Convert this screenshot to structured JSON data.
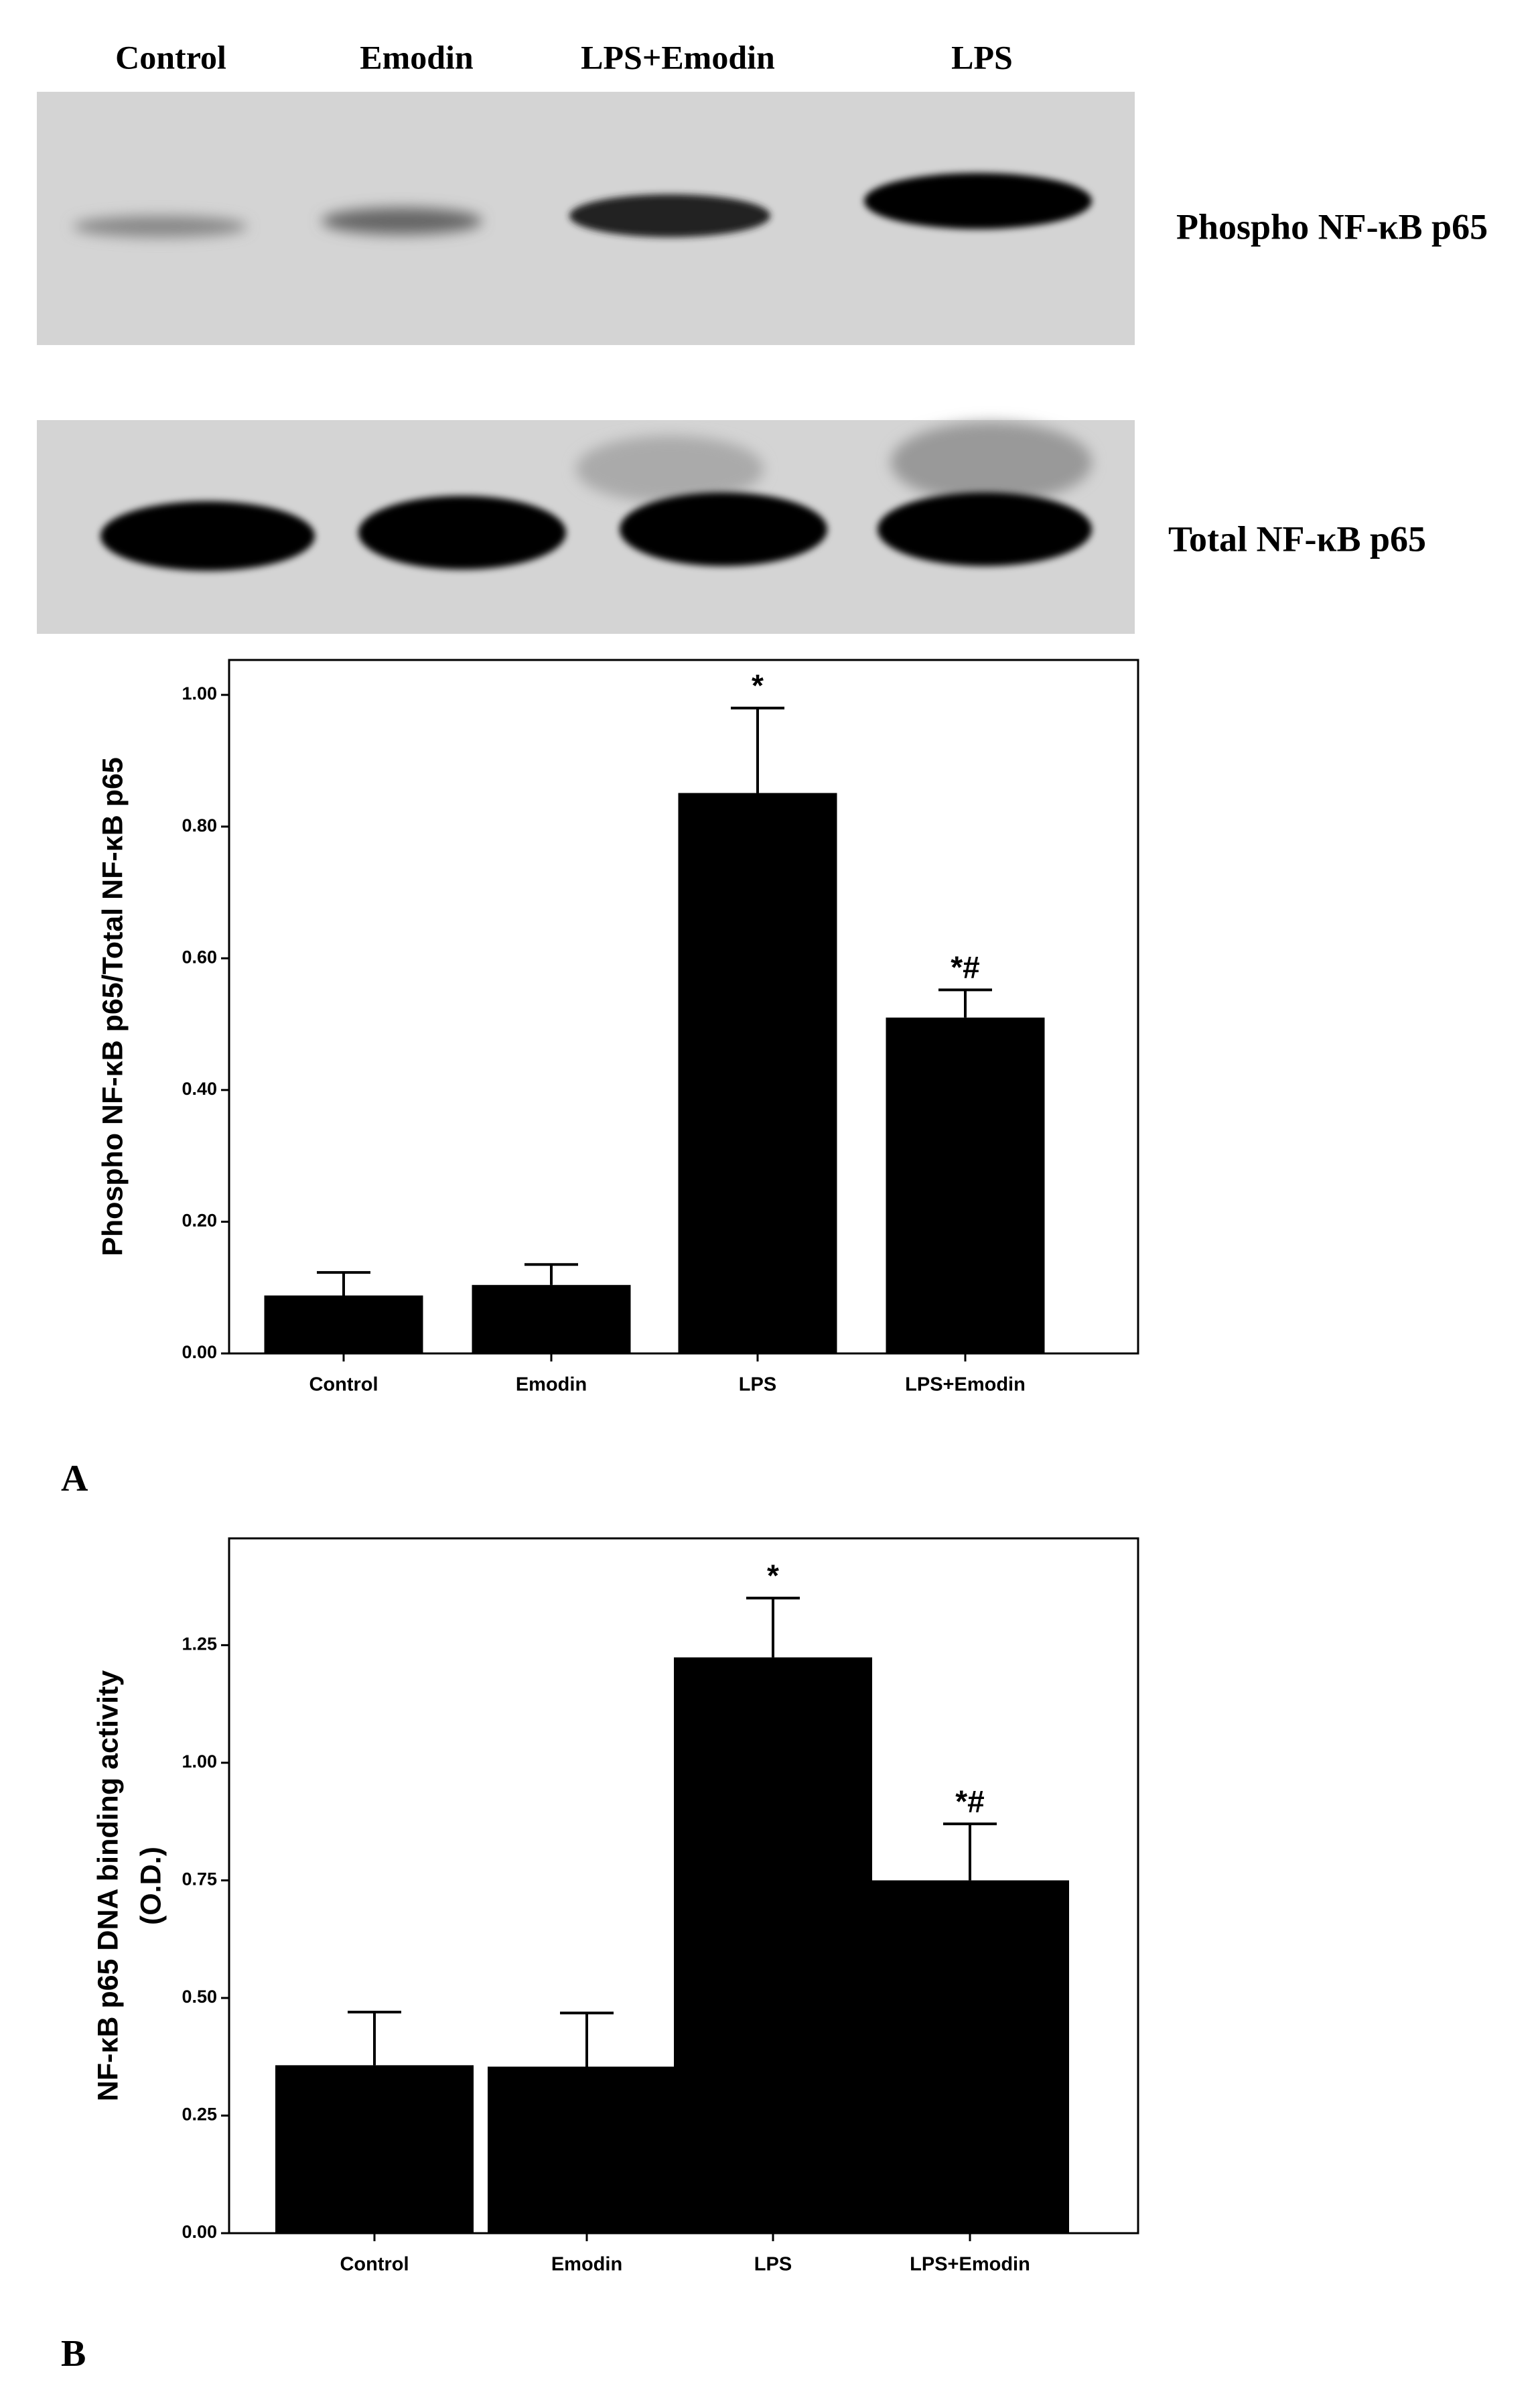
{
  "blot": {
    "lanes": [
      "Control",
      "Emodin",
      "LPS+Emodin",
      "LPS"
    ],
    "rows": [
      "Phospho NF-κB p65",
      "Total NF-κB p65"
    ]
  },
  "chart_data": [
    {
      "type": "bar",
      "panel_label": "A",
      "ylabel": [
        "Phospho NF-κB p65/Total NF-κB p65"
      ],
      "categories": [
        "Control",
        "Emodin",
        "LPS",
        "LPS+Emodin"
      ],
      "values": [
        0.088,
        0.104,
        0.851,
        0.51
      ],
      "errors": [
        0.035,
        0.031,
        0.129,
        0.042
      ],
      "annotations": [
        null,
        null,
        "*",
        "*#"
      ],
      "color": "#000000",
      "ylim": [
        0,
        1.053
      ],
      "yticks": [
        {
          "value": 0,
          "label": "0.00"
        },
        {
          "value": 0.2,
          "label": "0.20"
        },
        {
          "value": 0.4,
          "label": "0.40"
        },
        {
          "value": 0.6,
          "label": "0.60"
        },
        {
          "value": 0.8,
          "label": "0.80"
        },
        {
          "value": 1,
          "label": "1.00"
        }
      ]
    },
    {
      "type": "bar",
      "panel_label": "B",
      "ylabel": [
        "NF-κB p65 DNA binding activity",
        "(O.D.)"
      ],
      "categories": [
        "Control",
        "Emodin",
        "LPS",
        "LPS+Emodin"
      ],
      "values": [
        0.357,
        0.354,
        1.224,
        0.75
      ],
      "errors": [
        0.113,
        0.114,
        0.126,
        0.12
      ],
      "annotations": [
        null,
        null,
        "*",
        "*#"
      ],
      "color": "#000000",
      "ylim": [
        0,
        1.477
      ],
      "yticks": [
        {
          "value": 0,
          "label": "0.00"
        },
        {
          "value": 0.25,
          "label": "0.25"
        },
        {
          "value": 0.5,
          "label": "0.50"
        },
        {
          "value": 0.75,
          "label": "0.75"
        },
        {
          "value": 1,
          "label": "1.00"
        },
        {
          "value": 1.25,
          "label": "1.25"
        }
      ]
    }
  ]
}
